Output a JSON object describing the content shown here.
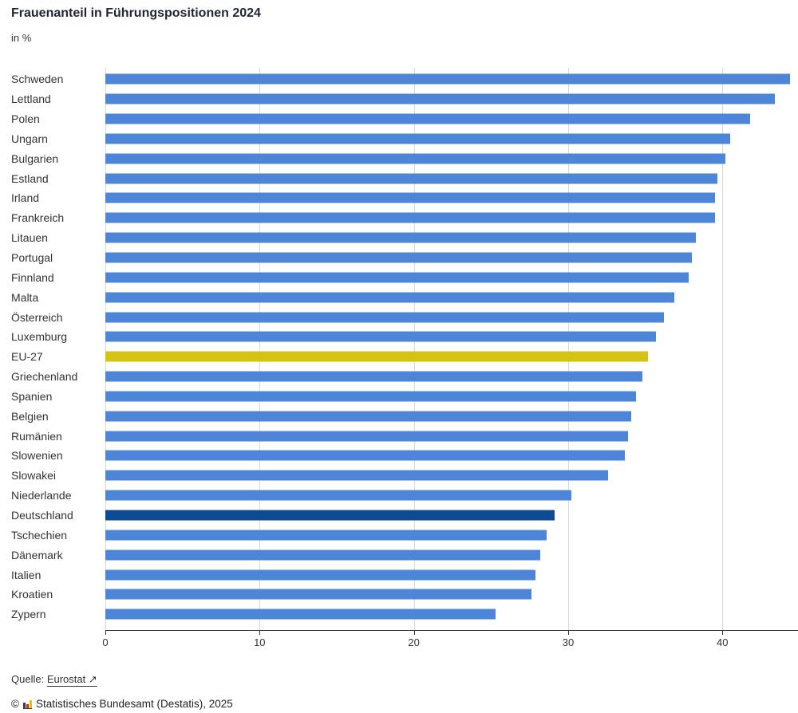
{
  "title": "Frauenanteil in Führungspositionen 2024",
  "subtitle": "in %",
  "source": {
    "prefix": "Quelle:",
    "link_label": "Eurostat",
    "arrow": "↗"
  },
  "copyright": {
    "symbol": "©",
    "text": "Statistisches Bundesamt (Destatis), 2025"
  },
  "colors": {
    "bar_default": "#4d86d8",
    "bar_eu": "#d4c412",
    "bar_germany": "#0d4b92",
    "gridline": "#d9d9d9",
    "axis": "#333333"
  },
  "chart_data": {
    "type": "bar",
    "orientation": "horizontal",
    "title": "Frauenanteil in Führungspositionen 2024",
    "xlabel": "",
    "ylabel": "",
    "unit": "in %",
    "xlim": [
      0,
      44.9
    ],
    "xticks": [
      0,
      10,
      20,
      30,
      40
    ],
    "grid": "vertical",
    "categories": [
      "Schweden",
      "Lettland",
      "Polen",
      "Ungarn",
      "Bulgarien",
      "Estland",
      "Irland",
      "Frankreich",
      "Litauen",
      "Portugal",
      "Finnland",
      "Malta",
      "Österreich",
      "Luxemburg",
      "EU-27",
      "Griechenland",
      "Spanien",
      "Belgien",
      "Rumänien",
      "Slowenien",
      "Slowakei",
      "Niederlande",
      "Deutschland",
      "Tschechien",
      "Dänemark",
      "Italien",
      "Kroatien",
      "Zypern"
    ],
    "values": [
      44.4,
      43.4,
      41.8,
      40.5,
      40.2,
      39.7,
      39.5,
      39.5,
      38.3,
      38.0,
      37.8,
      36.9,
      36.2,
      35.7,
      35.2,
      34.8,
      34.4,
      34.1,
      33.9,
      33.7,
      32.6,
      30.2,
      29.1,
      28.6,
      28.2,
      27.9,
      27.6,
      25.3
    ],
    "highlights": {
      "EU-27": "eu",
      "Deutschland": "germany"
    }
  }
}
